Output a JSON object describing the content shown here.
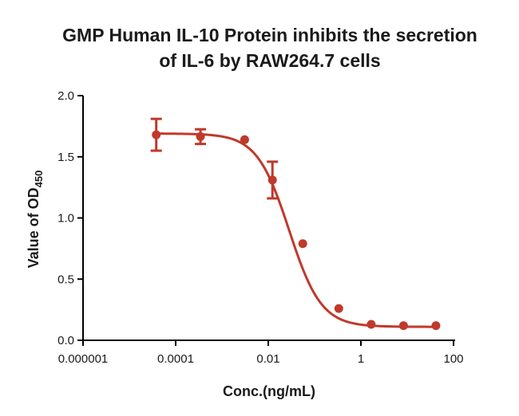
{
  "chart_data": {
    "type": "scatter",
    "title_lines": [
      "GMP Human IL-10 Protein inhibits the secretion",
      "of IL-6 by RAW264.7  cells"
    ],
    "xlabel": "Conc.(ng/mL)",
    "ylabel_main": "Value of OD",
    "ylabel_sub": "450",
    "x_scale": "log",
    "xlim": [
      1e-06,
      100
    ],
    "ylim": [
      0.0,
      2.0
    ],
    "x_ticks": [
      1e-06,
      0.0001,
      0.01,
      1,
      100
    ],
    "x_tick_labels": [
      "0.000001",
      "0.0001",
      "0.01",
      "1",
      "100"
    ],
    "y_ticks": [
      0.0,
      0.5,
      1.0,
      1.5,
      2.0
    ],
    "y_tick_labels": [
      "0.0",
      "0.5",
      "1.0",
      "1.5",
      "2.0"
    ],
    "color": "#c0392b",
    "points": [
      {
        "x": 3.81e-05,
        "y": 1.68,
        "err": 0.13
      },
      {
        "x": 0.000343,
        "y": 1.665,
        "err": 0.06
      },
      {
        "x": 0.00309,
        "y": 1.64,
        "err": 0
      },
      {
        "x": 0.0123,
        "y": 1.31,
        "err": 0.15
      },
      {
        "x": 0.0556,
        "y": 0.79,
        "err": 0
      },
      {
        "x": 0.333,
        "y": 0.26,
        "err": 0
      },
      {
        "x": 1.667,
        "y": 0.13,
        "err": 0
      },
      {
        "x": 8.333,
        "y": 0.12,
        "err": 0
      },
      {
        "x": 41.67,
        "y": 0.12,
        "err": 0
      }
    ],
    "fit": {
      "bottom": 0.11,
      "top": 1.69,
      "logEC50": -1.55,
      "hill": -1.25
    },
    "grid": false
  }
}
